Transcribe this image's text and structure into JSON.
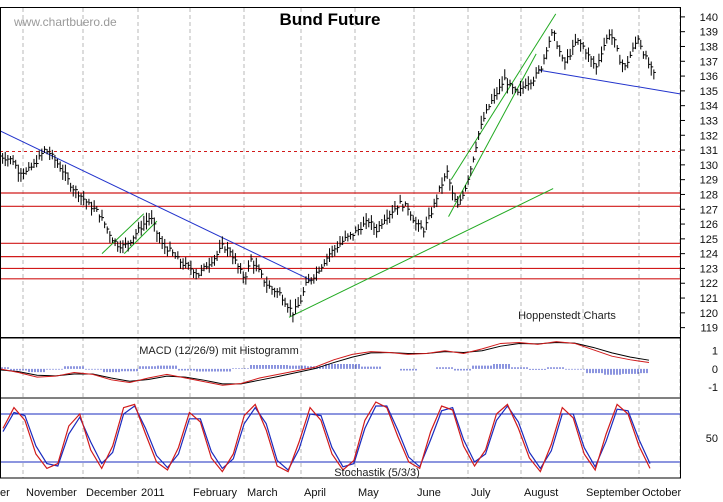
{
  "chart_data": [
    {
      "type": "candlestick",
      "title": "Bund Future",
      "watermark": "www.chartbuero.de",
      "source_note": "Hoppenstedt Charts",
      "months": [
        "November",
        "December",
        "2011",
        "February",
        "March",
        "April",
        "May",
        "June",
        "July",
        "August",
        "September",
        "October"
      ],
      "y_ticks": [
        119,
        120,
        121,
        122,
        123,
        124,
        125,
        126,
        127,
        128,
        129,
        130,
        131,
        132,
        133,
        134,
        135,
        136,
        137,
        138,
        139,
        140
      ],
      "ylim": [
        118.3,
        140.6
      ],
      "price_path": [
        [
          0,
          130.6
        ],
        [
          10,
          130.3
        ],
        [
          14,
          129.6
        ],
        [
          20,
          129.5
        ],
        [
          26,
          130.0
        ],
        [
          31,
          130.6
        ],
        [
          34,
          131.0
        ],
        [
          38,
          130.8
        ],
        [
          43,
          130.2
        ],
        [
          48,
          129.6
        ],
        [
          55,
          128.5
        ],
        [
          62,
          127.9
        ],
        [
          68,
          127.3
        ],
        [
          75,
          126.8
        ],
        [
          80,
          126.0
        ],
        [
          86,
          125.0
        ],
        [
          90,
          124.6
        ],
        [
          95,
          124.5
        ],
        [
          100,
          124.9
        ],
        [
          106,
          125.6
        ],
        [
          110,
          126.0
        ],
        [
          115,
          126.5
        ],
        [
          120,
          125.4
        ],
        [
          124,
          124.6
        ],
        [
          130,
          124.2
        ],
        [
          135,
          123.7
        ],
        [
          140,
          123.3
        ],
        [
          146,
          123.0
        ],
        [
          152,
          122.6
        ],
        [
          158,
          123.2
        ],
        [
          165,
          123.8
        ],
        [
          170,
          124.5
        ],
        [
          176,
          124.2
        ],
        [
          182,
          123.1
        ],
        [
          187,
          122.3
        ],
        [
          192,
          123.6
        ],
        [
          198,
          122.8
        ],
        [
          203,
          122.0
        ],
        [
          208,
          121.6
        ],
        [
          214,
          121.3
        ],
        [
          220,
          120.5
        ],
        [
          224,
          120.0
        ],
        [
          229,
          120.6
        ],
        [
          234,
          121.9
        ],
        [
          240,
          122.5
        ],
        [
          246,
          123.2
        ],
        [
          252,
          124.0
        ],
        [
          258,
          124.5
        ],
        [
          264,
          125.0
        ],
        [
          270,
          125.3
        ],
        [
          276,
          125.8
        ],
        [
          282,
          126.2
        ],
        [
          288,
          125.6
        ],
        [
          294,
          126.4
        ],
        [
          300,
          126.9
        ],
        [
          306,
          127.4
        ],
        [
          312,
          127.1
        ],
        [
          318,
          126.0
        ],
        [
          324,
          125.6
        ],
        [
          330,
          126.8
        ],
        [
          336,
          128.3
        ],
        [
          342,
          129.5
        ],
        [
          346,
          128.0
        ],
        [
          350,
          127.2
        ],
        [
          356,
          128.5
        ],
        [
          361,
          130.1
        ],
        [
          366,
          132.1
        ],
        [
          371,
          133.4
        ],
        [
          376,
          134.3
        ],
        [
          381,
          135.0
        ],
        [
          386,
          135.8
        ],
        [
          391,
          135.2
        ],
        [
          396,
          134.8
        ],
        [
          402,
          135.5
        ],
        [
          408,
          135.8
        ],
        [
          414,
          136.6
        ],
        [
          419,
          138.2
        ],
        [
          423,
          139.0
        ],
        [
          427,
          137.9
        ],
        [
          431,
          136.8
        ],
        [
          436,
          137.5
        ],
        [
          441,
          138.4
        ],
        [
          446,
          138.0
        ],
        [
          451,
          137.2
        ],
        [
          456,
          136.6
        ],
        [
          461,
          137.9
        ],
        [
          466,
          138.9
        ],
        [
          470,
          138.3
        ],
        [
          474,
          137.1
        ],
        [
          478,
          136.6
        ],
        [
          483,
          137.6
        ],
        [
          488,
          138.6
        ],
        [
          492,
          137.6
        ],
        [
          496,
          136.8
        ],
        [
          500,
          136.1
        ]
      ],
      "horizontal_lines": [
        128.1,
        127.2,
        124.7,
        123.8,
        123.0,
        122.3
      ],
      "dashed_line": 130.9,
      "trendlines": [
        {
          "color": "#2233cc",
          "from": [
            0,
            132.3
          ],
          "to": [
            238,
            122.2
          ]
        },
        {
          "color": "#2233cc",
          "from": [
            412,
            136.4
          ],
          "to": [
            520,
            134.8
          ]
        },
        {
          "color": "#22aa22",
          "from": [
            221,
            119.7
          ],
          "to": [
            423,
            128.4
          ]
        },
        {
          "color": "#22aa22",
          "from": [
            95,
            124.0
          ],
          "to": [
            120,
            126.2
          ]
        },
        {
          "color": "#22aa22",
          "from": [
            78,
            124.0
          ],
          "to": [
            110,
            126.7
          ]
        },
        {
          "color": "#22aa22",
          "from": [
            343,
            126.5
          ],
          "to": [
            410,
            137.5
          ]
        },
        {
          "color": "#22aa22",
          "from": [
            345,
            129.0
          ],
          "to": [
            425,
            140.2
          ]
        }
      ]
    },
    {
      "type": "line",
      "title": "MACD (12/26/9) mit Histogramm",
      "y_ticks": [
        1,
        0,
        -1
      ],
      "ylim": [
        -1.6,
        1.7
      ],
      "series": [
        {
          "values": [
            0,
            -0.2,
            -0.45,
            -0.4,
            -0.2,
            -0.3,
            -0.6,
            -0.75,
            -0.5,
            -0.3,
            -0.5,
            -0.7,
            -0.9,
            -0.8,
            -0.5,
            -0.3,
            -0.1,
            0.1,
            0.5,
            0.8,
            0.95,
            0.9,
            0.8,
            0.85,
            1.0,
            0.85,
            1.1,
            1.4,
            1.45,
            1.35,
            1.5,
            1.4,
            1.05,
            0.7,
            0.5,
            0.35
          ]
        },
        {
          "values": [
            -0.05,
            -0.15,
            -0.35,
            -0.38,
            -0.28,
            -0.28,
            -0.5,
            -0.68,
            -0.58,
            -0.4,
            -0.45,
            -0.62,
            -0.82,
            -0.82,
            -0.62,
            -0.42,
            -0.2,
            0.02,
            0.35,
            0.65,
            0.88,
            0.9,
            0.85,
            0.85,
            0.95,
            0.9,
            1.0,
            1.25,
            1.4,
            1.38,
            1.45,
            1.42,
            1.18,
            0.88,
            0.65,
            0.48
          ]
        }
      ]
    },
    {
      "type": "line",
      "title": "Stochastik (5/3/3)",
      "y_ticks": [
        50
      ],
      "ylim": [
        0,
        100
      ],
      "series": [
        {
          "values": [
            62,
            88,
            72,
            30,
            12,
            18,
            65,
            80,
            35,
            12,
            40,
            88,
            92,
            55,
            20,
            10,
            38,
            82,
            70,
            25,
            8,
            30,
            78,
            92,
            60,
            15,
            8,
            45,
            88,
            72,
            30,
            10,
            22,
            72,
            95,
            88,
            52,
            20,
            12,
            58,
            90,
            85,
            40,
            15,
            35,
            80,
            92,
            62,
            25,
            8,
            42,
            88,
            75,
            30,
            10,
            55,
            92,
            80,
            40,
            12
          ]
        },
        {
          "values": [
            58,
            82,
            78,
            40,
            18,
            15,
            55,
            76,
            45,
            18,
            32,
            80,
            90,
            62,
            28,
            13,
            30,
            74,
            74,
            33,
            12,
            24,
            68,
            88,
            68,
            22,
            10,
            36,
            80,
            78,
            38,
            14,
            18,
            62,
            90,
            90,
            60,
            26,
            14,
            48,
            84,
            88,
            48,
            20,
            30,
            72,
            90,
            70,
            32,
            12,
            34,
            80,
            80,
            38,
            14,
            46,
            86,
            84,
            48,
            18
          ]
        }
      ]
    }
  ]
}
